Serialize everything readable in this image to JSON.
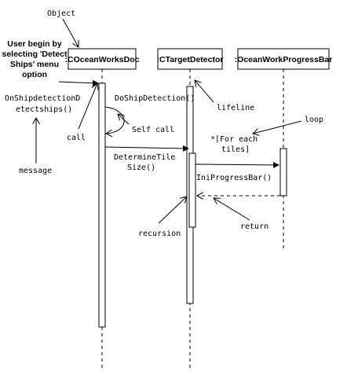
{
  "participants": [
    {
      "name": ":COceanWorksDoc"
    },
    {
      "name": ":CTargetDetector"
    },
    {
      "name": ":OceanWorkProgressBar"
    }
  ],
  "annotations": {
    "object": "Object",
    "user_line1": "User begin by",
    "user_line2": "selecting 'Detect",
    "user_line3": "Ships' menu",
    "user_line4": "option",
    "call": "call",
    "message": "message",
    "self_call": "Self call",
    "lifeline": "lifeline",
    "loop": "loop",
    "recursion": "recursion",
    "return": "return"
  },
  "messages": {
    "on_ship_line1": "OnShipdetectionD",
    "on_ship_line2": "etectships()",
    "do_ship_detection": "DoShipDetection()",
    "determine_line1": "DetermineTile",
    "determine_line2": "Size()",
    "ini_progress_bar": "IniProgressBar()",
    "loop_line1": "*[For each",
    "loop_line2": "tiles]"
  }
}
